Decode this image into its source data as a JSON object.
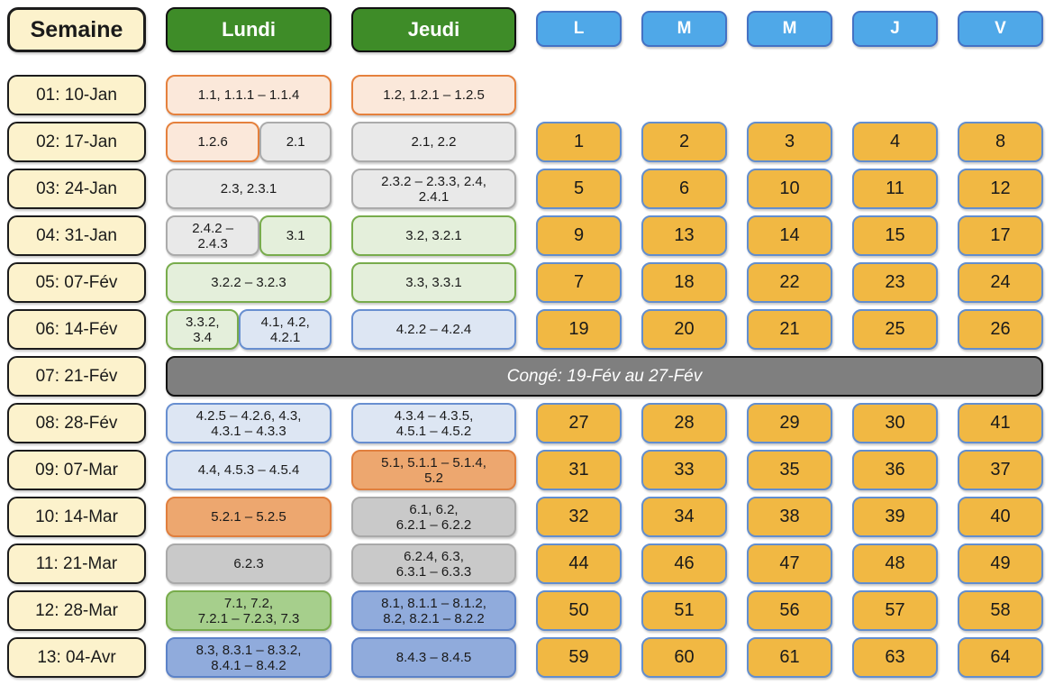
{
  "header": {
    "week_col": "Semaine",
    "day_cols": [
      "Lundi",
      "Jeudi"
    ],
    "weekday_cols": [
      "L",
      "M",
      "M",
      "J",
      "V"
    ]
  },
  "palette": {
    "week_label_bg": "#FCF2CC",
    "day_header_bg": "#3E8C28",
    "weekday_header_bg": "#4FA8E8",
    "weekday_header_border": "#4472C4",
    "conge_bg": "#7F7F7F",
    "number": {
      "bg": "#F1B843",
      "border": "#638ECE"
    },
    "peach": {
      "bg": "#FBE8DA",
      "border": "#E5813D"
    },
    "graylight": {
      "bg": "#E9E9E9",
      "border": "#ABABAB"
    },
    "greenlight": {
      "bg": "#E4EFDB",
      "border": "#78AC4C"
    },
    "bluelight": {
      "bg": "#DDE6F3",
      "border": "#688FD0"
    },
    "orange": {
      "bg": "#EDA76F",
      "border": "#E07F3E"
    },
    "gray": {
      "bg": "#C9C9C9",
      "border": "#A9A9A9"
    },
    "green": {
      "bg": "#A6CF8C",
      "border": "#78AC4C"
    },
    "blue": {
      "bg": "#90ABDC",
      "border": "#5C82C8"
    }
  },
  "rows": [
    {
      "week": "01: 10-Jan",
      "lundi": [
        {
          "text": "1.1, 1.1.1 – 1.1.4",
          "style": "peach",
          "grow": 100
        }
      ],
      "jeudi": [
        {
          "text": "1.2, 1.2.1 – 1.2.5",
          "style": "peach",
          "grow": 100
        }
      ],
      "days": []
    },
    {
      "week": "02: 17-Jan",
      "lundi": [
        {
          "text": "1.2.6",
          "style": "peach",
          "grow": 57
        },
        {
          "text": "2.1",
          "style": "graylight",
          "grow": 43
        }
      ],
      "jeudi": [
        {
          "text": "2.1, 2.2",
          "style": "graylight",
          "grow": 100
        }
      ],
      "days": [
        "1",
        "2",
        "3",
        "4",
        "8"
      ]
    },
    {
      "week": "03: 24-Jan",
      "lundi": [
        {
          "text": "2.3, 2.3.1",
          "style": "graylight",
          "grow": 100
        }
      ],
      "jeudi": [
        {
          "text": "2.3.2 – 2.3.3, 2.4,\n2.4.1",
          "style": "graylight",
          "grow": 100
        }
      ],
      "days": [
        "5",
        "6",
        "10",
        "11",
        "12"
      ]
    },
    {
      "week": "04: 31-Jan",
      "lundi": [
        {
          "text": "2.4.2 –\n2.4.3",
          "style": "graylight",
          "grow": 57
        },
        {
          "text": "3.1",
          "style": "greenlight",
          "grow": 43
        }
      ],
      "jeudi": [
        {
          "text": "3.2, 3.2.1",
          "style": "greenlight",
          "grow": 100
        }
      ],
      "days": [
        "9",
        "13",
        "14",
        "15",
        "17"
      ]
    },
    {
      "week": "05: 07-Fév",
      "lundi": [
        {
          "text": "3.2.2 – 3.2.3",
          "style": "greenlight",
          "grow": 100
        }
      ],
      "jeudi": [
        {
          "text": "3.3, 3.3.1",
          "style": "greenlight",
          "grow": 100
        }
      ],
      "days": [
        "7",
        "18",
        "22",
        "23",
        "24"
      ]
    },
    {
      "week": "06: 14-Fév",
      "lundi": [
        {
          "text": "3.3.2,\n3.4",
          "style": "greenlight",
          "grow": 44
        },
        {
          "text": "4.1, 4.2,\n4.2.1",
          "style": "bluelight",
          "grow": 56
        }
      ],
      "jeudi": [
        {
          "text": "4.2.2 – 4.2.4",
          "style": "bluelight",
          "grow": 100
        }
      ],
      "days": [
        "19",
        "20",
        "21",
        "25",
        "26"
      ]
    },
    {
      "week": "07: 21-Fév",
      "conge": "Congé: 19-Fév au 27-Fév"
    },
    {
      "week": "08: 28-Fév",
      "lundi": [
        {
          "text": "4.2.5 – 4.2.6, 4.3,\n4.3.1 – 4.3.3",
          "style": "bluelight",
          "grow": 100
        }
      ],
      "jeudi": [
        {
          "text": "4.3.4 – 4.3.5,\n4.5.1 – 4.5.2",
          "style": "bluelight",
          "grow": 100
        }
      ],
      "days": [
        "27",
        "28",
        "29",
        "30",
        "41"
      ]
    },
    {
      "week": "09: 07-Mar",
      "lundi": [
        {
          "text": "4.4, 4.5.3 – 4.5.4",
          "style": "bluelight",
          "grow": 100
        }
      ],
      "jeudi": [
        {
          "text": "5.1, 5.1.1 – 5.1.4,\n5.2",
          "style": "orange",
          "grow": 100
        }
      ],
      "days": [
        "31",
        "33",
        "35",
        "36",
        "37"
      ]
    },
    {
      "week": "10: 14-Mar",
      "lundi": [
        {
          "text": "5.2.1 – 5.2.5",
          "style": "orange",
          "grow": 100
        }
      ],
      "jeudi": [
        {
          "text": "6.1, 6.2,\n6.2.1 – 6.2.2",
          "style": "gray",
          "grow": 100
        }
      ],
      "days": [
        "32",
        "34",
        "38",
        "39",
        "40"
      ]
    },
    {
      "week": "11: 21-Mar",
      "lundi": [
        {
          "text": "6.2.3",
          "style": "gray",
          "grow": 100
        }
      ],
      "jeudi": [
        {
          "text": "6.2.4, 6.3,\n6.3.1 – 6.3.3",
          "style": "gray",
          "grow": 100
        }
      ],
      "days": [
        "44",
        "46",
        "47",
        "48",
        "49"
      ]
    },
    {
      "week": "12: 28-Mar",
      "lundi": [
        {
          "text": "7.1, 7.2,\n7.2.1 – 7.2.3, 7.3",
          "style": "green",
          "grow": 100
        }
      ],
      "jeudi": [
        {
          "text": "8.1, 8.1.1 – 8.1.2,\n8.2, 8.2.1 – 8.2.2",
          "style": "blue",
          "grow": 100
        }
      ],
      "days": [
        "50",
        "51",
        "56",
        "57",
        "58"
      ]
    },
    {
      "week": "13: 04-Avr",
      "lundi": [
        {
          "text": "8.3, 8.3.1 – 8.3.2,\n8.4.1 – 8.4.2",
          "style": "blue",
          "grow": 100
        }
      ],
      "jeudi": [
        {
          "text": "8.4.3 – 8.4.5",
          "style": "blue",
          "grow": 100
        }
      ],
      "days": [
        "59",
        "60",
        "61",
        "63",
        "64"
      ]
    }
  ]
}
